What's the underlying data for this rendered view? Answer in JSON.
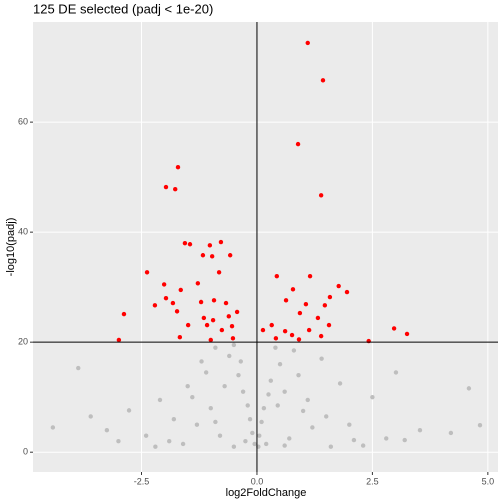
{
  "chart_data": {
    "type": "scatter",
    "title": "125 DE selected (padj < 1e-20)",
    "x_label": "log2FoldChange",
    "y_label": "-log10(padj)",
    "xlim": [
      -4.85,
      5.22
    ],
    "ylim": [
      -3.6,
      78.2
    ],
    "xticks": [
      -2.5,
      {
        "value": 0,
        "label": "0.0"
      },
      2.5,
      {
        "value": 5,
        "label": "5.0"
      }
    ],
    "yticks": [
      0,
      20,
      40,
      60
    ],
    "grid": true,
    "hline": 20,
    "vline": 0,
    "series": [
      {
        "color": "#bebebe",
        "x": [
          -3.87,
          4.59,
          -4.42,
          -2.77,
          4.83,
          3.01,
          -3.25,
          3.53,
          -3.6,
          4.2,
          -2.4,
          2.8,
          -1.9,
          2.1,
          -2.1,
          2.5,
          -1.5,
          1.8,
          -1.2,
          1.4,
          -0.9,
          0.8,
          -0.6,
          0.5,
          -0.4,
          0.3,
          -0.3,
          0.25,
          -0.2,
          0.15,
          -0.15,
          0.1,
          -0.1,
          0.05,
          -0.05,
          0.03,
          -1.0,
          1.0,
          -1.3,
          1.2,
          -0.8,
          0.7,
          -0.5,
          0.6,
          -1.6,
          1.6,
          -0.7,
          0.6,
          -0.5,
          0.4,
          -1.1,
          0.9,
          -2.2,
          2.3,
          -3.0,
          3.2,
          -0.35,
          0.45,
          -0.9,
          1.5,
          -1.8,
          2.0,
          -0.25,
          0.2,
          -1.4,
          1.1
        ],
        "values": [
          15.3,
          11.6,
          4.5,
          7.6,
          4.9,
          14.5,
          4.0,
          4.0,
          6.5,
          3.5,
          3.0,
          2.5,
          2.0,
          2.2,
          9.5,
          10.0,
          12.0,
          12.5,
          16.5,
          17.0,
          19.0,
          18.5,
          17.5,
          16.0,
          14.0,
          13.0,
          11.0,
          10.5,
          8.5,
          8.0,
          6.0,
          5.5,
          3.5,
          3.0,
          1.5,
          1.0,
          8.0,
          7.5,
          5.0,
          4.5,
          3.0,
          2.5,
          1.0,
          1.2,
          1.5,
          1.0,
          12.0,
          11.0,
          19.5,
          19.0,
          14.5,
          14.0,
          1.0,
          1.2,
          2.0,
          2.2,
          16.5,
          8.5,
          5.5,
          6.5,
          6.0,
          5.0,
          2.0,
          1.5,
          10.0,
          9.5
        ]
      },
      {
        "color": "#ff0000",
        "x": [
          1.1,
          1.43,
          0.89,
          1.39,
          -1.71,
          -1.97,
          -1.77,
          -1.56,
          -1.45,
          -1.02,
          -0.78,
          -2.38,
          -1.17,
          -0.97,
          -0.58,
          -2.01,
          -1.65,
          -1.28,
          -0.82,
          -1.97,
          -2.21,
          -1.82,
          -1.21,
          -0.93,
          -0.67,
          -2.88,
          -1.73,
          -1.15,
          -0.95,
          -0.61,
          -1.49,
          -1.08,
          -0.76,
          -0.54,
          -0.43,
          -1.67,
          -1.0,
          -0.52,
          -2.99,
          0.43,
          1.15,
          0.78,
          1.77,
          1.58,
          1.95,
          0.63,
          1.06,
          1.47,
          0.93,
          1.32,
          0.32,
          0.61,
          1.13,
          1.56,
          0.76,
          0.41,
          0.91,
          1.39,
          2.97,
          3.25,
          2.42,
          0.13
        ],
        "values": [
          74.4,
          67.6,
          56.0,
          46.7,
          51.8,
          48.2,
          47.8,
          38.0,
          37.8,
          37.6,
          38.2,
          32.7,
          35.8,
          35.6,
          35.8,
          30.5,
          29.5,
          30.7,
          32.7,
          28.0,
          26.7,
          27.1,
          27.3,
          27.6,
          27.1,
          25.1,
          25.6,
          24.4,
          24.0,
          24.7,
          23.1,
          23.1,
          22.2,
          22.9,
          25.5,
          20.9,
          20.4,
          20.7,
          20.4,
          32.0,
          32.0,
          29.6,
          30.2,
          28.2,
          29.1,
          27.6,
          26.9,
          26.7,
          25.3,
          24.4,
          23.1,
          22.0,
          22.2,
          23.1,
          21.3,
          20.7,
          20.5,
          21.1,
          22.5,
          21.5,
          20.2,
          22.2
        ]
      }
    ]
  }
}
